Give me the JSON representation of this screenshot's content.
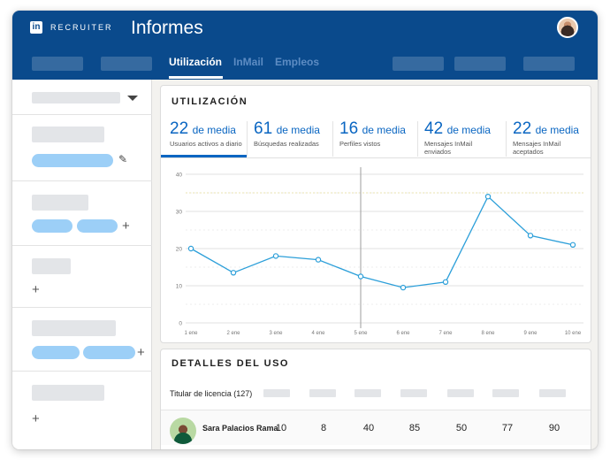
{
  "header": {
    "logo_in": "in",
    "logo_text": "RECRUITER",
    "title": "Informes"
  },
  "nav": {
    "tabs": [
      {
        "label": "Utilización",
        "active": true
      },
      {
        "label": "InMail",
        "active": false
      },
      {
        "label": "Empleos",
        "active": false
      }
    ]
  },
  "usage": {
    "title": "UTILIZACIÓN",
    "unit": "de media",
    "stats": [
      {
        "value": "22",
        "label": "Usuarios activos a diario"
      },
      {
        "value": "61",
        "label": "Búsquedas realizadas"
      },
      {
        "value": "16",
        "label": "Perfiles vistos"
      },
      {
        "value": "42",
        "label": "Mensajes InMail enviados"
      },
      {
        "value": "22",
        "label": "Mensajes InMail aceptados"
      }
    ]
  },
  "chart_data": {
    "type": "line",
    "categories": [
      "1 ene",
      "2 ene",
      "3 ene",
      "4 ene",
      "5 ene",
      "6 ene",
      "7 ene",
      "8 ene",
      "9 ene",
      "10 ene"
    ],
    "values": [
      20,
      13.5,
      18,
      17,
      12.5,
      9.5,
      11,
      34,
      23.5,
      21
    ],
    "yticks": [
      0,
      10,
      20,
      30,
      40
    ],
    "ylim": [
      0,
      40
    ],
    "reference_line": 35,
    "hover_category": "5 ene",
    "grid": true,
    "color": "#2c9fd9"
  },
  "details": {
    "title": "DETALLES DEL USO",
    "license_header": "Titular de licencia (127)",
    "row": {
      "name": "Sara Palacios Rama",
      "values": [
        "10",
        "8",
        "40",
        "85",
        "50",
        "77",
        "90"
      ]
    }
  },
  "colors": {
    "brand": "#0a4a8c",
    "accent": "#0a66c2",
    "pill": "#9ccff7",
    "line": "#2c9fd9"
  },
  "icons": {
    "dropdown": "caret-down-icon",
    "edit": "pencil-icon",
    "add": "plus-icon"
  }
}
